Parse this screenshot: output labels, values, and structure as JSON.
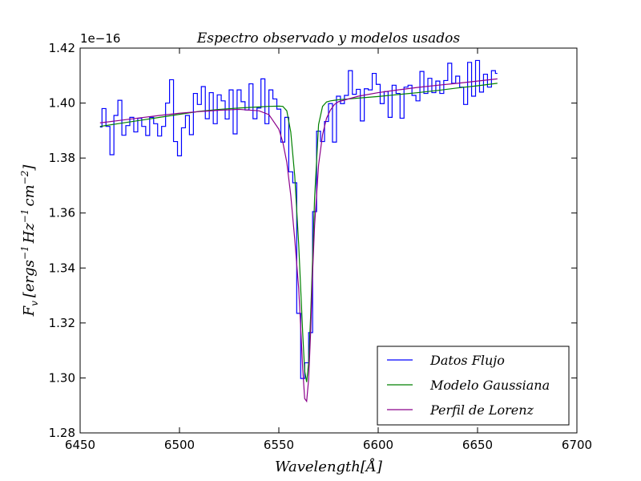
{
  "chart_data": {
    "type": "line",
    "title": "Espectro observado y modelos usados",
    "xlabel": "Wavelength[Å]",
    "ylabel": "F_v [ergs^-1 Hz^-1 cm^-2]",
    "ylabel_parts": {
      "F": "F",
      "v": "v",
      "lb": "[",
      "ergs": "ergs",
      "m1a": "−1",
      "hz": "Hz",
      "m1b": "−1",
      "cm": "cm",
      "m2": "−2",
      "rb": "]"
    },
    "y_offset_label": "1e−16",
    "xlim": [
      6450,
      6700
    ],
    "ylim": [
      1.28,
      1.42
    ],
    "x_ticks": [
      "6450",
      "6500",
      "6550",
      "6600",
      "6650",
      "6700"
    ],
    "y_ticks": [
      "1.28",
      "1.30",
      "1.32",
      "1.34",
      "1.36",
      "1.38",
      "1.40",
      "1.42"
    ],
    "grid": false,
    "legend_position": "lower-right",
    "series": [
      {
        "name": "Datos Flujo",
        "color": "#0000ff",
        "style": "steps",
        "x": [
          6460,
          6462,
          6464,
          6466,
          6468,
          6470,
          6472,
          6474,
          6476,
          6478,
          6480,
          6482,
          6484,
          6486,
          6488,
          6490,
          6492,
          6494,
          6496,
          6498,
          6500,
          6502,
          6504,
          6506,
          6508,
          6510,
          6512,
          6514,
          6516,
          6518,
          6520,
          6522,
          6524,
          6526,
          6528,
          6530,
          6532,
          6534,
          6536,
          6538,
          6540,
          6542,
          6544,
          6546,
          6548,
          6550,
          6552,
          6554,
          6556,
          6558,
          6560,
          6562,
          6564,
          6566,
          6568,
          6570,
          6572,
          6574,
          6576,
          6578,
          6580,
          6582,
          6584,
          6586,
          6588,
          6590,
          6592,
          6594,
          6596,
          6598,
          6600,
          6602,
          6604,
          6606,
          6608,
          6610,
          6612,
          6614,
          6616,
          6618,
          6620,
          6622,
          6624,
          6626,
          6628,
          6630,
          6632,
          6634,
          6636,
          6638,
          6640,
          6642,
          6644,
          6646,
          6648,
          6650,
          6652,
          6654,
          6656,
          6658,
          6660
        ],
        "y": [
          1.3913,
          1.398,
          1.3915,
          1.3812,
          1.3955,
          1.401,
          1.3883,
          1.3918,
          1.3948,
          1.3895,
          1.3945,
          1.3915,
          1.3882,
          1.3948,
          1.3925,
          1.388,
          1.3915,
          1.4,
          1.4085,
          1.386,
          1.3808,
          1.391,
          1.3955,
          1.3885,
          1.4035,
          1.3995,
          1.406,
          1.3943,
          1.4038,
          1.3925,
          1.403,
          1.4008,
          1.3942,
          1.4048,
          1.3888,
          1.4048,
          1.4005,
          1.3975,
          1.407,
          1.3943,
          1.3982,
          1.4088,
          1.3925,
          1.4048,
          1.4015,
          1.3978,
          1.3858,
          1.3948,
          1.375,
          1.371,
          1.3235,
          1.2998,
          1.3055,
          1.3165,
          1.3605,
          1.3898,
          1.386,
          1.3933,
          1.3998,
          1.3858,
          1.4025,
          1.3998,
          1.4028,
          1.4118,
          1.4032,
          1.405,
          1.3935,
          1.4052,
          1.4048,
          1.4108,
          1.4068,
          1.3998,
          1.4042,
          1.3948,
          1.4065,
          1.4035,
          1.3945,
          1.4058,
          1.4065,
          1.4028,
          1.4008,
          1.4115,
          1.4035,
          1.409,
          1.4038,
          1.408,
          1.4035,
          1.4082,
          1.4145,
          1.4072,
          1.4098,
          1.4058,
          1.3995,
          1.4148,
          1.4025,
          1.4155,
          1.404,
          1.4105,
          1.4058,
          1.4118,
          1.4108
        ]
      },
      {
        "name": "Modelo Gaussiana",
        "color": "#008000",
        "style": "line",
        "x": [
          6460,
          6470,
          6480,
          6490,
          6500,
          6510,
          6520,
          6530,
          6540,
          6545,
          6550,
          6552,
          6554,
          6556,
          6558,
          6560,
          6561,
          6562,
          6563,
          6564,
          6565,
          6566,
          6567,
          6568,
          6570,
          6572,
          6574,
          6576,
          6578,
          6580,
          6590,
          6600,
          6610,
          6620,
          6630,
          6640,
          6650,
          6660
        ],
        "y": [
          1.3915,
          1.3926,
          1.3937,
          1.3948,
          1.3959,
          1.397,
          1.3977,
          1.3982,
          1.3986,
          1.3988,
          1.3989,
          1.3988,
          1.3972,
          1.3895,
          1.3735,
          1.3485,
          1.3325,
          1.3165,
          1.3025,
          1.2985,
          1.3055,
          1.3225,
          1.3435,
          1.3655,
          1.3922,
          1.3988,
          1.4004,
          1.4008,
          1.401,
          1.4012,
          1.4018,
          1.4024,
          1.4031,
          1.4038,
          1.4046,
          1.4055,
          1.4063,
          1.4072
        ]
      },
      {
        "name": "Perfil de Lorenz",
        "color": "#8b008b",
        "style": "line",
        "x": [
          6460,
          6470,
          6480,
          6490,
          6500,
          6510,
          6520,
          6530,
          6540,
          6545,
          6550,
          6552,
          6554,
          6556,
          6558,
          6560,
          6561,
          6562,
          6563,
          6564,
          6565,
          6566,
          6567,
          6568,
          6570,
          6572,
          6574,
          6576,
          6578,
          6580,
          6590,
          6600,
          6610,
          6620,
          6630,
          6640,
          6650,
          6660
        ],
        "y": [
          1.3928,
          1.3937,
          1.3946,
          1.3955,
          1.3963,
          1.3969,
          1.3974,
          1.3977,
          1.3972,
          1.3958,
          1.3905,
          1.3858,
          1.3785,
          1.3665,
          1.3505,
          1.3325,
          1.3185,
          1.3035,
          1.2925,
          1.2915,
          1.2995,
          1.3165,
          1.3385,
          1.3555,
          1.3775,
          1.3885,
          1.3945,
          1.3975,
          1.3995,
          1.4005,
          1.4025,
          1.4038,
          1.4048,
          1.4057,
          1.4065,
          1.4072,
          1.408,
          1.4088
        ]
      }
    ]
  }
}
